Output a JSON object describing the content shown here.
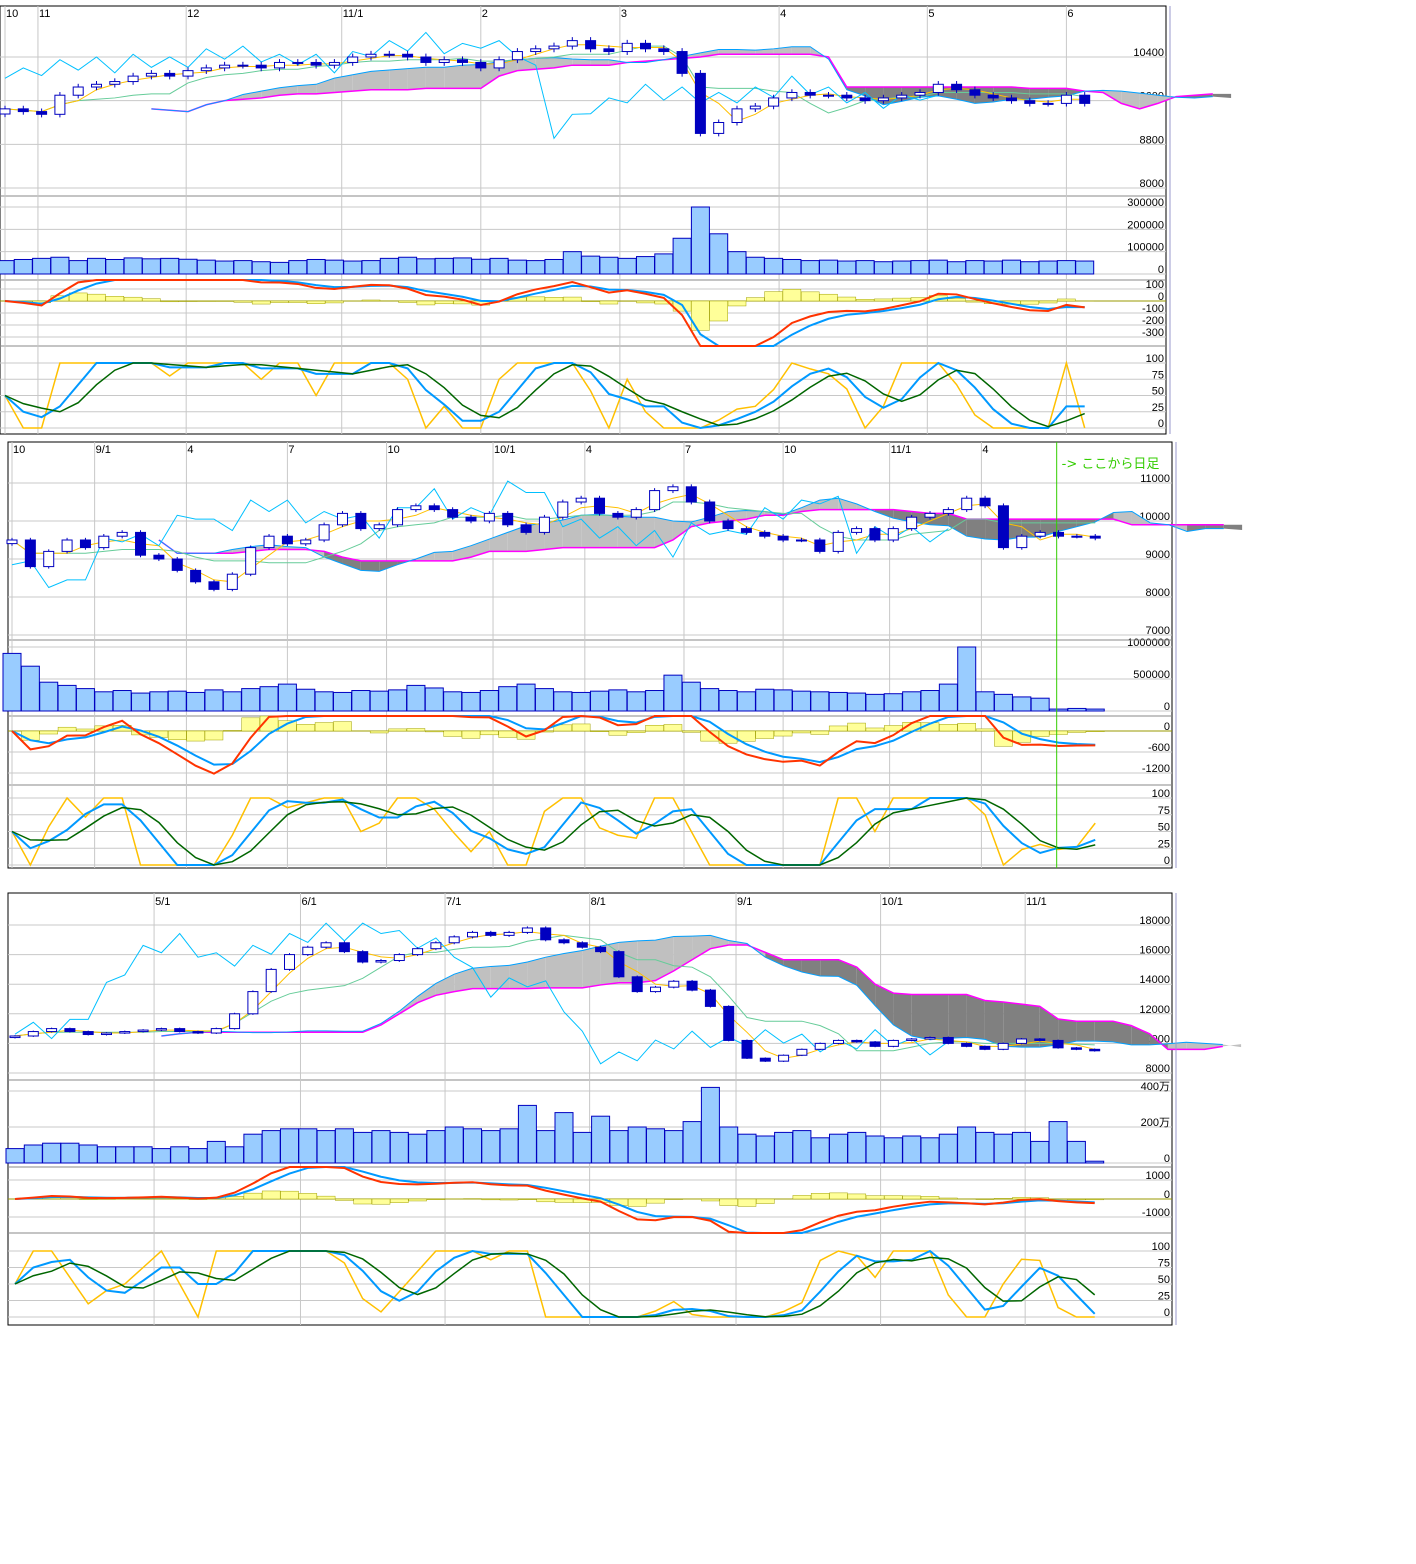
{
  "chart_data": [
    {
      "type": "candlestick",
      "x_ticks": [
        {
          "label": "10",
          "at": 0
        },
        {
          "label": "11",
          "at": 1.8
        },
        {
          "label": "12",
          "at": 9.9
        },
        {
          "label": "11/1",
          "at": 18.4
        },
        {
          "label": "2",
          "at": 26
        },
        {
          "label": "3",
          "at": 33.6
        },
        {
          "label": "4",
          "at": 42.3
        },
        {
          "label": "5",
          "at": 50.4
        },
        {
          "label": "6",
          "at": 58
        }
      ],
      "price": {
        "ticks": [
          "8000",
          "8800",
          "9600",
          "10400"
        ],
        "ylim": [
          8000,
          10400
        ]
      },
      "closes": [
        9450,
        9400,
        9350,
        9700,
        9850,
        9900,
        9950,
        10050,
        10100,
        10050,
        10150,
        10200,
        10250,
        10250,
        10200,
        10300,
        10300,
        10250,
        10300,
        10400,
        10450,
        10450,
        10400,
        10300,
        10350,
        10300,
        10200,
        10350,
        10500,
        10550,
        10600,
        10700,
        10550,
        10500,
        10650,
        10550,
        10500,
        10100,
        9000,
        9200,
        9450,
        9500,
        9650,
        9750,
        9700,
        9700,
        9650,
        9600,
        9650,
        9700,
        9750,
        9900,
        9800,
        9700,
        9650,
        9600,
        9550,
        9550,
        9700,
        9550
      ],
      "volume": {
        "ticks": [
          "0",
          "100000",
          "200000",
          "300000"
        ],
        "ylim": [
          0,
          300000
        ],
        "values": [
          60000,
          65000,
          70000,
          75000,
          60000,
          70000,
          65000,
          72000,
          68000,
          70000,
          66000,
          62000,
          58000,
          60000,
          55000,
          52000,
          60000,
          65000,
          62000,
          58000,
          60000,
          70000,
          75000,
          68000,
          70000,
          72000,
          66000,
          70000,
          62000,
          60000,
          65000,
          100000,
          80000,
          75000,
          70000,
          78000,
          90000,
          160000,
          300000,
          180000,
          100000,
          75000,
          70000,
          65000,
          60000,
          62000,
          58000,
          60000,
          55000,
          58000,
          60000,
          62000,
          55000,
          60000,
          58000,
          62000,
          55000,
          58000,
          60000,
          58000
        ]
      },
      "macd": {
        "ticks": [
          "100",
          "0",
          "-100",
          "-200",
          "-300"
        ],
        "ylim": [
          -300,
          100
        ]
      },
      "stochastics": {
        "ticks": [
          "0",
          "25",
          "50",
          "75",
          "100"
        ],
        "ylim": [
          0,
          100
        ]
      }
    },
    {
      "type": "candlestick",
      "x_ticks": [
        {
          "label": "10",
          "at": 0
        },
        {
          "label": "9/1",
          "at": 4.5
        },
        {
          "label": "4",
          "at": 9.5
        },
        {
          "label": "7",
          "at": 15
        },
        {
          "label": "10",
          "at": 20.4
        },
        {
          "label": "10/1",
          "at": 26.2
        },
        {
          "label": "4",
          "at": 31.2
        },
        {
          "label": "7",
          "at": 36.6
        },
        {
          "label": "10",
          "at": 42
        },
        {
          "label": "11/1",
          "at": 47.8
        },
        {
          "label": "4",
          "at": 52.8
        }
      ],
      "daily_marker": {
        "label": "-> ここから日足",
        "at": 56.9
      },
      "price": {
        "ticks": [
          "7000",
          "8000",
          "9000",
          "10000",
          "11000"
        ],
        "ylim": [
          7000,
          11000
        ]
      },
      "closes": [
        9500,
        8800,
        9200,
        9500,
        9300,
        9600,
        9700,
        9100,
        9000,
        8700,
        8400,
        8200,
        8600,
        9300,
        9600,
        9400,
        9500,
        9900,
        10200,
        9800,
        9900,
        10300,
        10400,
        10300,
        10100,
        10000,
        10200,
        9900,
        9700,
        10100,
        10500,
        10600,
        10200,
        10100,
        10300,
        10800,
        10900,
        10500,
        10000,
        9800,
        9700,
        9600,
        9500,
        9500,
        9200,
        9700,
        9800,
        9500,
        9800,
        10100,
        10200,
        10300,
        10600,
        10400,
        9300,
        9600,
        9700,
        9600,
        9600,
        9550
      ],
      "volume": {
        "ticks": [
          "0",
          "500000",
          "1000000"
        ],
        "ylim": [
          0,
          1000000
        ],
        "values": [
          900000,
          700000,
          450000,
          400000,
          350000,
          300000,
          320000,
          280000,
          300000,
          310000,
          290000,
          330000,
          300000,
          350000,
          380000,
          420000,
          340000,
          300000,
          290000,
          320000,
          310000,
          330000,
          400000,
          360000,
          300000,
          290000,
          320000,
          380000,
          420000,
          350000,
          300000,
          290000,
          310000,
          330000,
          300000,
          320000,
          560000,
          450000,
          350000,
          320000,
          300000,
          340000,
          330000,
          310000,
          300000,
          290000,
          280000,
          260000,
          270000,
          300000,
          320000,
          420000,
          1000000,
          300000,
          260000,
          220000,
          200000,
          30000,
          40000,
          30000
        ]
      },
      "macd": {
        "ticks": [
          "0",
          "-600",
          "-1200"
        ],
        "ylim": [
          -1200,
          0
        ]
      },
      "stochastics": {
        "ticks": [
          "0",
          "25",
          "50",
          "75",
          "100"
        ],
        "ylim": [
          0,
          100
        ]
      }
    },
    {
      "type": "candlestick",
      "x_ticks": [
        {
          "label": "5/1",
          "at": 7.6
        },
        {
          "label": "6/1",
          "at": 15.6
        },
        {
          "label": "7/1",
          "at": 23.5
        },
        {
          "label": "8/1",
          "at": 31.4
        },
        {
          "label": "9/1",
          "at": 39.4
        },
        {
          "label": "10/1",
          "at": 47.3
        },
        {
          "label": "11/1",
          "at": 55.2
        }
      ],
      "price": {
        "ticks": [
          "8000",
          "10000",
          "12000",
          "14000",
          "16000",
          "18000"
        ],
        "ylim": [
          8000,
          18000
        ]
      },
      "closes": [
        10500,
        10800,
        11000,
        10800,
        10600,
        10700,
        10800,
        10900,
        11000,
        10800,
        10700,
        11000,
        12000,
        13500,
        15000,
        16000,
        16500,
        16800,
        16200,
        15500,
        15600,
        16000,
        16400,
        16800,
        17200,
        17500,
        17300,
        17500,
        17800,
        17000,
        16800,
        16500,
        16200,
        14500,
        13500,
        13800,
        14200,
        13600,
        12500,
        10200,
        9000,
        8800,
        9200,
        9600,
        10000,
        10200,
        10100,
        9800,
        10200,
        10300,
        10400,
        10000,
        9800,
        9600,
        10000,
        10300,
        10200,
        9700,
        9600,
        9500
      ],
      "volume": {
        "ticks": [
          "0",
          "200万",
          "400万"
        ],
        "ylim": [
          0,
          4000000
        ],
        "values": [
          800000,
          1000000,
          1100000,
          1100000,
          1000000,
          900000,
          900000,
          900000,
          800000,
          900000,
          800000,
          1200000,
          900000,
          1600000,
          1800000,
          1900000,
          1900000,
          1800000,
          1900000,
          1700000,
          1800000,
          1700000,
          1600000,
          1800000,
          2000000,
          1900000,
          1800000,
          1900000,
          3200000,
          1800000,
          2800000,
          1700000,
          2600000,
          1800000,
          2000000,
          1900000,
          1800000,
          2300000,
          4200000,
          2000000,
          1600000,
          1500000,
          1700000,
          1800000,
          1400000,
          1600000,
          1700000,
          1500000,
          1400000,
          1500000,
          1400000,
          1600000,
          2000000,
          1700000,
          1600000,
          1700000,
          1200000,
          2300000,
          1200000,
          100000
        ]
      },
      "macd": {
        "ticks": [
          "1000",
          "0",
          "-1000"
        ],
        "ylim": [
          -1500,
          1200
        ]
      },
      "stochastics": {
        "ticks": [
          "0",
          "25",
          "50",
          "75",
          "100"
        ],
        "ylim": [
          0,
          100
        ]
      }
    }
  ],
  "colors": {
    "candle_down": "#0000c0",
    "candle_up_fill": "#ffffff",
    "cloud_light": "#c0c0c0",
    "cloud_dark": "#808080",
    "span_b": "#ff00ff",
    "span_a": "#00a0ff",
    "conversion": "#ffc000",
    "base": "#66cc99",
    "lagging": "#00c0ff",
    "volume": "#99ccff",
    "macd": "#ff3300",
    "signal": "#0099ff",
    "histogram": "#ffff99",
    "stoch_k": "#ffc000",
    "stoch_d": "#0099ff",
    "stoch_slow": "#006600",
    "daily_marker": "#33cc00"
  }
}
